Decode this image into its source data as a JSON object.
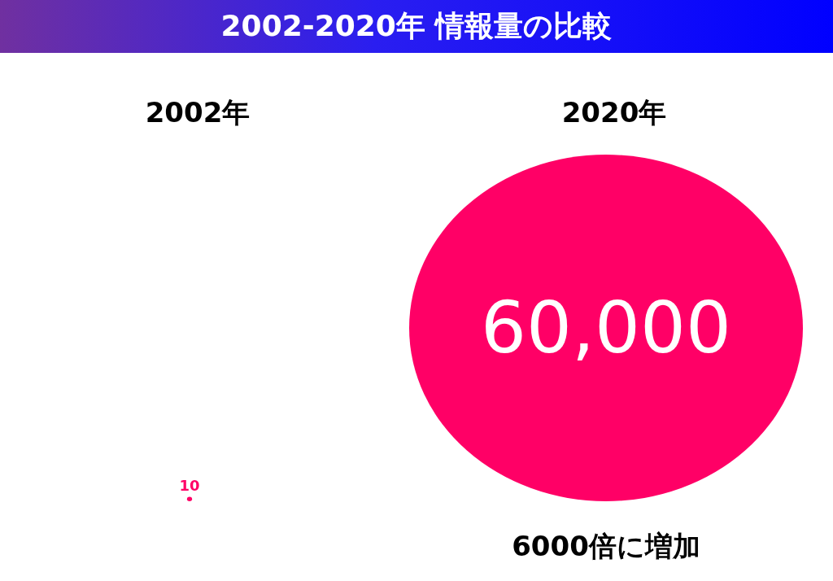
{
  "chart_data": {
    "type": "other",
    "title": "2002-2020年 情報量の比較",
    "categories": [
      "2002年",
      "2020年"
    ],
    "values": [
      10,
      60000
    ],
    "value_labels": [
      "10",
      "60,000"
    ],
    "color": "#ff0066",
    "annotations": [
      "6000倍に増加"
    ]
  }
}
